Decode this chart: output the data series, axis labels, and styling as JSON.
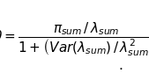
{
  "eq_label": "$\\theta=$",
  "numerator": "$\\pi_{sum}\\,/\\,\\lambda_{sum}$",
  "denominator_prefix": "$1+$",
  "denominator_paren": "$\\left(\\!Var(\\lambda_{sum})\\,/\\,\\lambda_{sum}^{2}\\!\\right)$",
  "fontsize_main": 11,
  "fontsize_eq": 10,
  "bg_color": "#ffffff",
  "text_color": "#000000",
  "fig_width": 1.69,
  "fig_height": 0.92
}
